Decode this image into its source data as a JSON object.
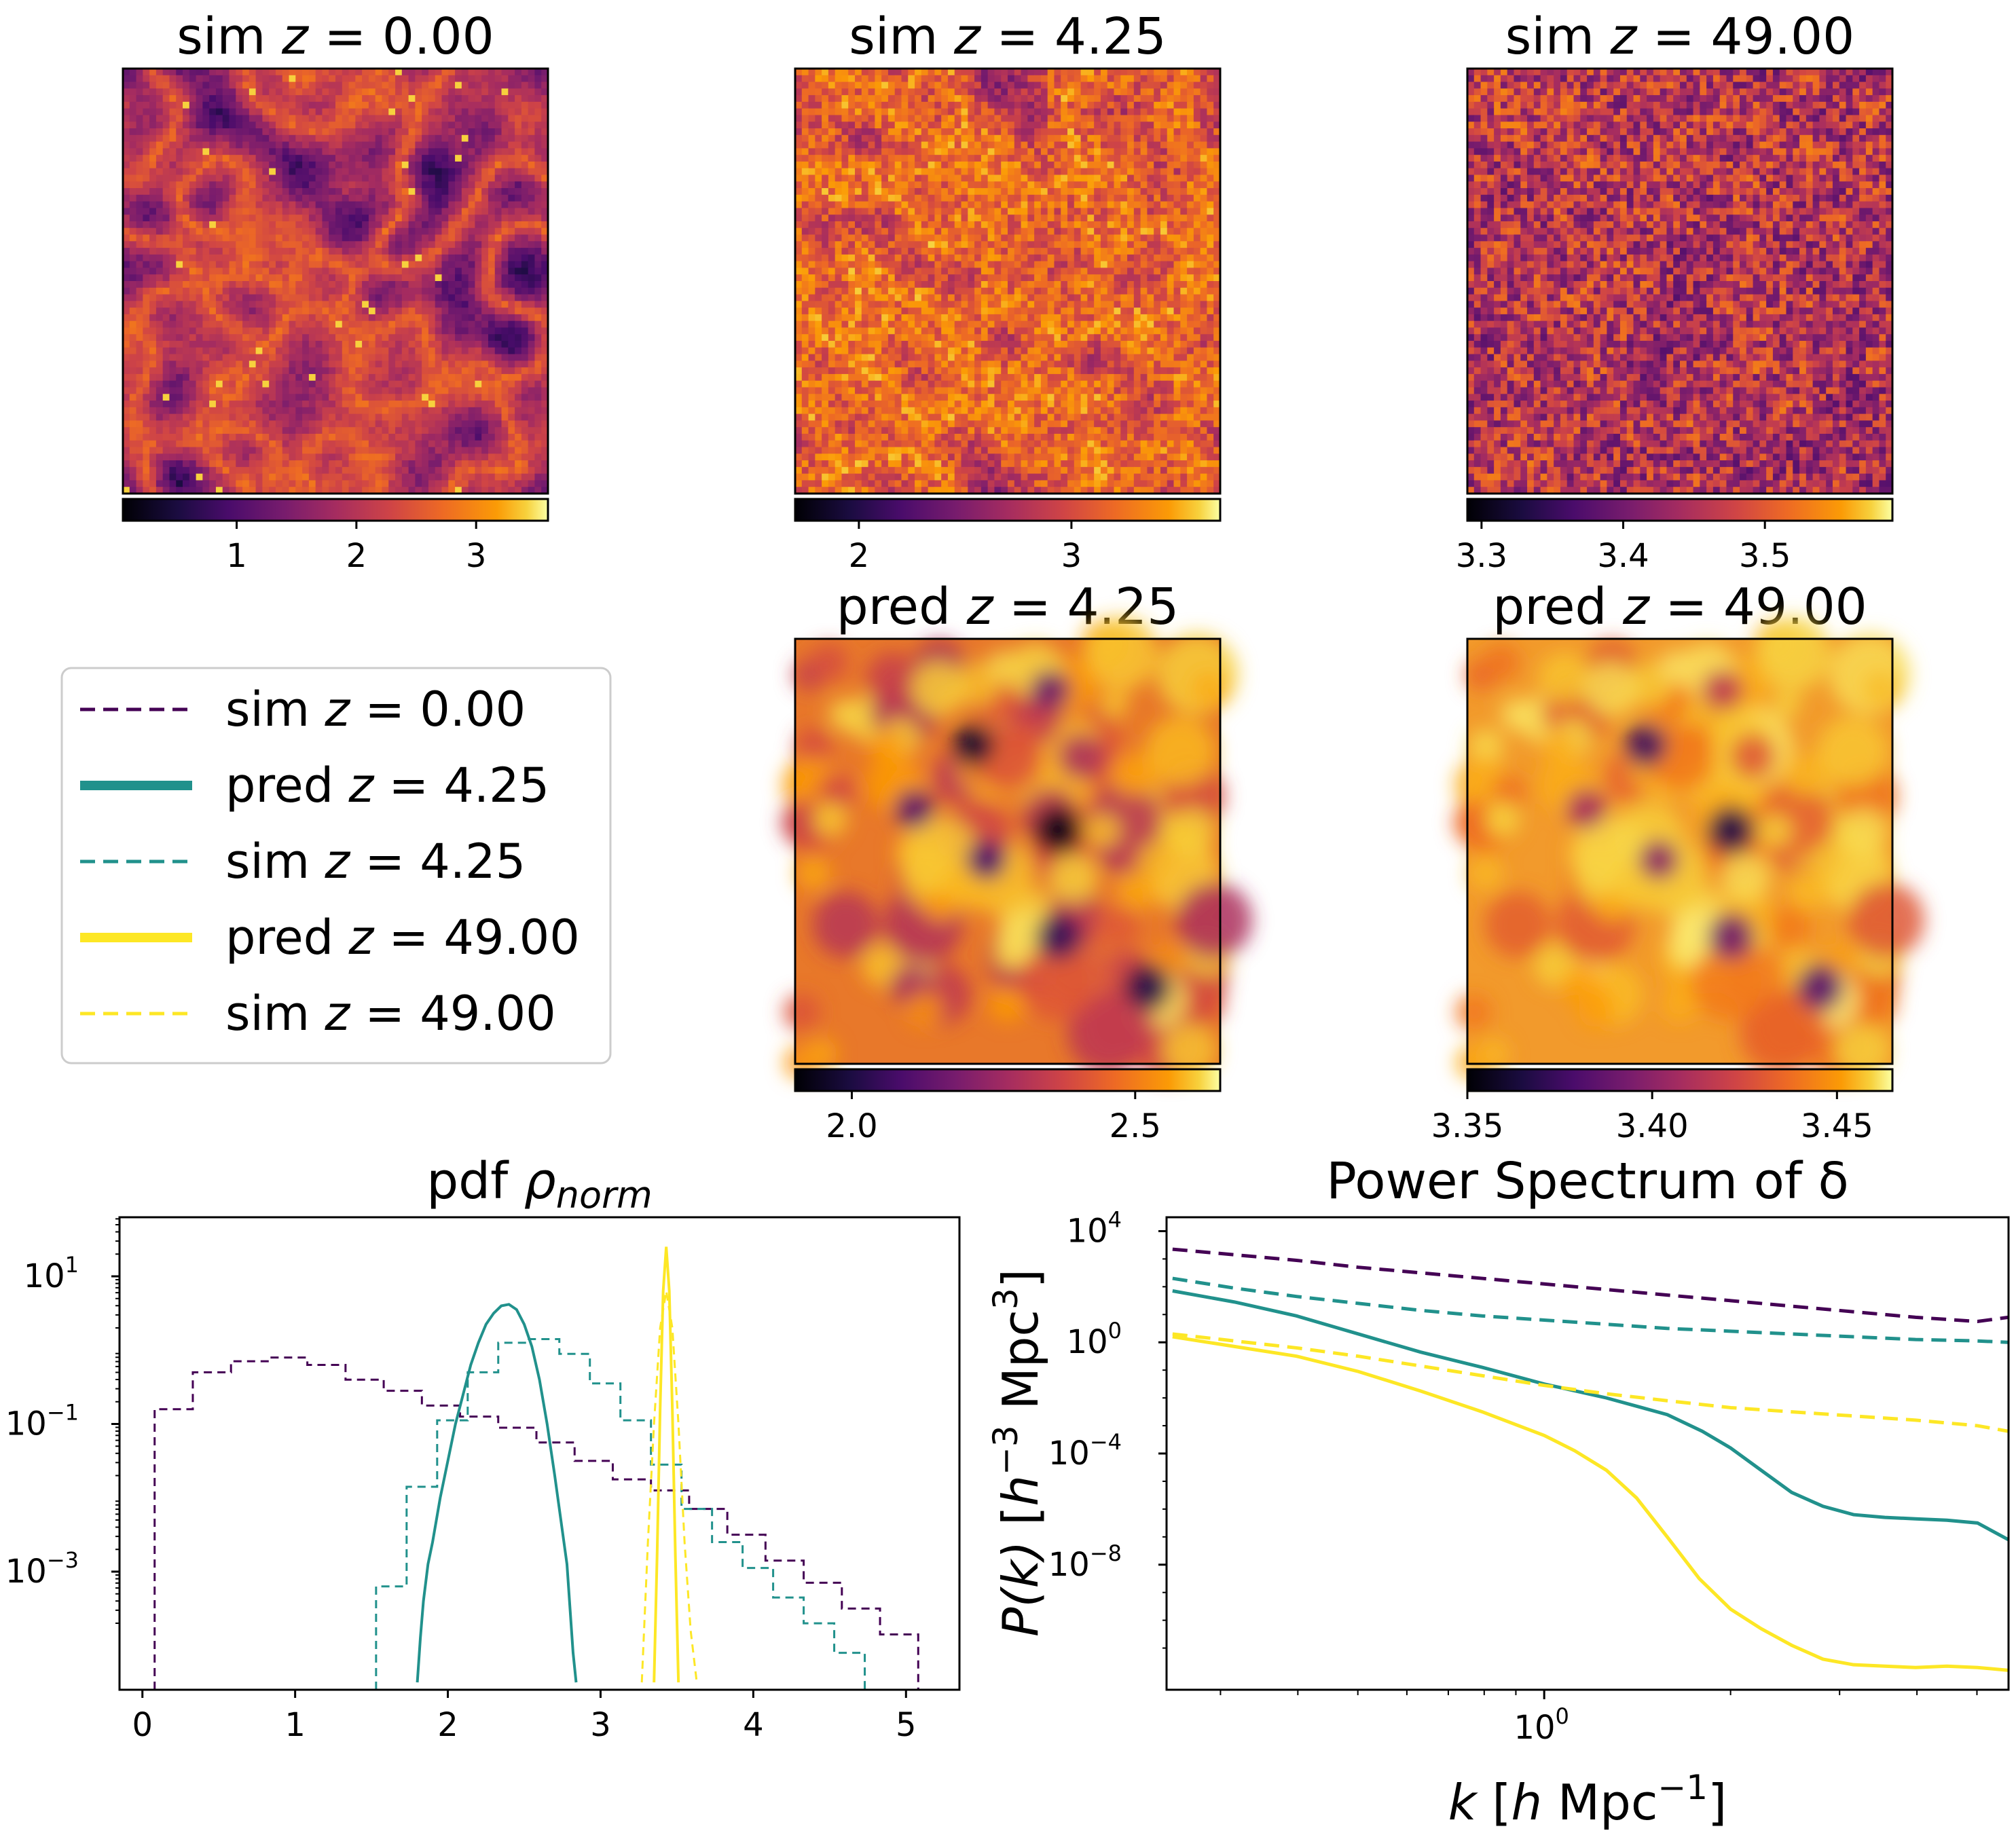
{
  "figure": {
    "panels": [
      {
        "id": "sim0",
        "title_pre": "sim ",
        "title_z": "z",
        "title_val": "= 0.00",
        "cb_ticks": [
          "1",
          "2",
          "3"
        ],
        "cb_vals": [
          1,
          2,
          3
        ],
        "vmin": 0.05,
        "vmax": 3.6,
        "style": "sim0"
      },
      {
        "id": "sim4",
        "title_pre": "sim ",
        "title_z": "z",
        "title_val": "= 4.25",
        "cb_ticks": [
          "2",
          "3"
        ],
        "cb_vals": [
          2,
          3
        ],
        "vmin": 1.7,
        "vmax": 3.7,
        "style": "sim4"
      },
      {
        "id": "sim49",
        "title_pre": "sim ",
        "title_z": "z",
        "title_val": "= 49.00",
        "cb_ticks": [
          "3.3",
          "3.4",
          "3.5"
        ],
        "cb_vals": [
          3.3,
          3.4,
          3.5
        ],
        "vmin": 3.29,
        "vmax": 3.59,
        "style": "sim49"
      },
      {
        "id": "pred4",
        "title_pre": "pred ",
        "title_z": "z",
        "title_val": "= 4.25",
        "cb_ticks": [
          "2.0",
          "2.5"
        ],
        "cb_vals": [
          2.0,
          2.5
        ],
        "vmin": 1.9,
        "vmax": 2.65,
        "style": "pred4"
      },
      {
        "id": "pred49",
        "title_pre": "pred ",
        "title_z": "z",
        "title_val": "= 49.00",
        "cb_ticks": [
          "3.35",
          "3.40",
          "3.45"
        ],
        "cb_vals": [
          3.35,
          3.4,
          3.45
        ],
        "vmin": 3.35,
        "vmax": 3.465,
        "style": "pred49"
      }
    ],
    "colors": {
      "sim0": "#440154",
      "z425": "#21918c",
      "z49": "#fde725",
      "frame": "#000000",
      "legend_border": "#cccccc"
    },
    "legend": [
      {
        "pre": "sim ",
        "z": "z",
        "val": "= 0.00",
        "color": "#440154",
        "dash": true,
        "thick": false
      },
      {
        "pre": "pred ",
        "z": "z",
        "val": "= 4.25",
        "color": "#21918c",
        "dash": false,
        "thick": true
      },
      {
        "pre": "sim ",
        "z": "z",
        "val": "= 4.25",
        "color": "#21918c",
        "dash": true,
        "thick": false
      },
      {
        "pre": "pred ",
        "z": "z",
        "val": "= 49.00",
        "color": "#fde725",
        "dash": false,
        "thick": true
      },
      {
        "pre": "sim ",
        "z": "z",
        "val": "= 49.00",
        "color": "#fde725",
        "dash": true,
        "thick": false
      }
    ]
  },
  "chart_data": [
    {
      "type": "heatmap",
      "title": "sim z = 0.00",
      "colormap": "inferno",
      "colorbar_range": [
        0.05,
        3.6
      ],
      "colorbar_ticks": [
        1,
        2,
        3
      ]
    },
    {
      "type": "heatmap",
      "title": "sim z = 4.25",
      "colormap": "inferno",
      "colorbar_range": [
        1.7,
        3.7
      ],
      "colorbar_ticks": [
        2,
        3
      ]
    },
    {
      "type": "heatmap",
      "title": "sim z = 49.00",
      "colormap": "inferno",
      "colorbar_range": [
        3.29,
        3.59
      ],
      "colorbar_ticks": [
        3.3,
        3.4,
        3.5
      ]
    },
    {
      "type": "heatmap",
      "title": "pred z = 4.25",
      "colormap": "inferno",
      "colorbar_range": [
        1.9,
        2.65
      ],
      "colorbar_ticks": [
        2.0,
        2.5
      ]
    },
    {
      "type": "heatmap",
      "title": "pred z = 49.00",
      "colormap": "inferno",
      "colorbar_range": [
        3.35,
        3.465
      ],
      "colorbar_ticks": [
        3.35,
        3.4,
        3.45
      ]
    },
    {
      "type": "line",
      "title_pre": "pdf ",
      "title_sym": "ρ",
      "title_sub": "norm",
      "xlim": [
        -0.15,
        5.35
      ],
      "ylim_log10": [
        -4.6,
        1.8
      ],
      "yscale": "log",
      "x_ticks": [
        0,
        1,
        2,
        3,
        4,
        5
      ],
      "x_tick_labels": [
        "0",
        "1",
        "2",
        "3",
        "4",
        "5"
      ],
      "y_ticks_log10": [
        1,
        -1,
        -3
      ],
      "y_tick_labels": [
        {
          "base": "10",
          "exp": "1"
        },
        {
          "base": "10",
          "exp": "−1"
        },
        {
          "base": "10",
          "exp": "−3"
        }
      ],
      "series": [
        {
          "name": "sim z = 0.00",
          "color": "#440154",
          "dash": true,
          "step": true,
          "bins": [
            0.08,
            0.33,
            0.58,
            0.83,
            1.08,
            1.33,
            1.58,
            1.83,
            2.08,
            2.33,
            2.58,
            2.83,
            3.08,
            3.33,
            3.58,
            3.83,
            4.08,
            4.33,
            4.58,
            4.83,
            5.08
          ],
          "log10": [
            -0.8,
            -0.3,
            -0.15,
            -0.1,
            -0.2,
            -0.4,
            -0.55,
            -0.75,
            -0.9,
            -1.05,
            -1.25,
            -1.5,
            -1.75,
            -1.9,
            -2.15,
            -2.5,
            -2.85,
            -3.15,
            -3.5,
            -3.85
          ]
        },
        {
          "name": "sim z = 4.25",
          "color": "#21918c",
          "dash": true,
          "step": true,
          "bins": [
            1.53,
            1.73,
            1.93,
            2.13,
            2.33,
            2.53,
            2.73,
            2.93,
            3.13,
            3.33,
            3.53,
            3.73,
            3.93,
            4.13,
            4.33,
            4.53,
            4.73
          ],
          "log10": [
            -3.2,
            -1.85,
            -0.95,
            -0.3,
            0.1,
            0.15,
            -0.05,
            -0.45,
            -0.95,
            -1.55,
            -2.15,
            -2.6,
            -2.95,
            -3.35,
            -3.7,
            -4.1
          ]
        },
        {
          "name": "pred z = 4.25",
          "color": "#21918c",
          "dash": false,
          "step": false,
          "x": [
            1.8,
            1.82,
            1.84,
            1.87,
            1.9,
            1.95,
            2.0,
            2.05,
            2.1,
            2.15,
            2.2,
            2.25,
            2.3,
            2.35,
            2.4,
            2.45,
            2.5,
            2.55,
            2.6,
            2.65,
            2.7,
            2.74,
            2.78,
            2.8,
            2.82,
            2.84
          ],
          "log10": [
            -4.5,
            -3.9,
            -3.4,
            -2.9,
            -2.6,
            -2.0,
            -1.5,
            -1.0,
            -0.6,
            -0.2,
            0.1,
            0.35,
            0.5,
            0.6,
            0.62,
            0.55,
            0.35,
            0.05,
            -0.4,
            -1.0,
            -1.7,
            -2.3,
            -2.9,
            -3.5,
            -4.1,
            -4.5
          ]
        },
        {
          "name": "pred z = 49.00",
          "color": "#fde725",
          "dash": false,
          "step": false,
          "x": [
            3.35,
            3.37,
            3.39,
            3.41,
            3.43,
            3.45,
            3.47,
            3.49,
            3.51
          ],
          "log10": [
            -4.5,
            -2.8,
            -0.8,
            0.8,
            1.4,
            0.8,
            -0.8,
            -2.8,
            -4.5
          ]
        },
        {
          "name": "sim z = 49.00",
          "color": "#fde725",
          "dash": true,
          "step": false,
          "x": [
            3.27,
            3.31,
            3.35,
            3.39,
            3.43,
            3.47,
            3.51,
            3.55,
            3.59,
            3.63
          ],
          "log10": [
            -4.5,
            -2.6,
            -1.0,
            0.3,
            0.8,
            0.3,
            -1.0,
            -2.6,
            -3.8,
            -4.5
          ]
        }
      ]
    },
    {
      "type": "line",
      "title": "Power Spectrum of δ",
      "xscale": "log",
      "yscale": "log",
      "xlim_log10": [
        -0.61,
        0.75
      ],
      "ylim_log10": [
        -12.5,
        4.5
      ],
      "xlabel_sym": "k",
      "xlabel_unit": "[h Mpc",
      "xlabel_exp": "−1",
      "xlabel_close": "]",
      "ylabel_sym": "P(k)",
      "ylabel_unit": "[h",
      "ylabel_exp1": "−3",
      "ylabel_mid": " Mpc",
      "ylabel_exp2": "3",
      "ylabel_close": "]",
      "x_tick_labels": [
        {
          "base": "10",
          "exp": "0"
        }
      ],
      "y_ticks_log10": [
        4,
        0,
        -4,
        -8
      ],
      "y_tick_labels": [
        {
          "base": "10",
          "exp": "4"
        },
        {
          "base": "10",
          "exp": "0"
        },
        {
          "base": "10",
          "exp": "−4"
        },
        {
          "base": "10",
          "exp": "−8"
        }
      ],
      "series": [
        {
          "name": "sim z = 0.00",
          "color": "#440154",
          "dash": true,
          "k": [
            0.251,
            0.316,
            0.398,
            0.501,
            0.631,
            0.794,
            1.0,
            1.26,
            1.58,
            2.0,
            2.51,
            3.16,
            3.98,
            5.01,
            5.62
          ],
          "log10P": [
            3.35,
            3.15,
            2.95,
            2.7,
            2.5,
            2.3,
            2.1,
            1.9,
            1.7,
            1.5,
            1.3,
            1.1,
            0.9,
            0.75,
            0.9
          ]
        },
        {
          "name": "sim z = 4.25",
          "color": "#21918c",
          "dash": true,
          "k": [
            0.251,
            0.316,
            0.398,
            0.501,
            0.631,
            0.794,
            1.0,
            1.26,
            1.58,
            2.0,
            2.51,
            3.16,
            3.98,
            5.01,
            5.62
          ],
          "log10P": [
            2.3,
            1.95,
            1.65,
            1.4,
            1.15,
            0.95,
            0.8,
            0.65,
            0.5,
            0.4,
            0.3,
            0.2,
            0.1,
            0.05,
            0.0
          ]
        },
        {
          "name": "pred z = 4.25",
          "color": "#21918c",
          "dash": false,
          "k": [
            0.251,
            0.316,
            0.398,
            0.501,
            0.631,
            0.794,
            1.0,
            1.26,
            1.58,
            1.8,
            2.0,
            2.24,
            2.51,
            2.82,
            3.16,
            3.55,
            3.98,
            4.47,
            5.01,
            5.62
          ],
          "log10P": [
            1.85,
            1.45,
            0.95,
            0.3,
            -0.35,
            -0.9,
            -1.5,
            -2.0,
            -2.6,
            -3.2,
            -3.8,
            -4.6,
            -5.4,
            -5.9,
            -6.2,
            -6.3,
            -6.35,
            -6.4,
            -6.5,
            -7.1
          ]
        },
        {
          "name": "sim z = 49.00",
          "color": "#fde725",
          "dash": true,
          "k": [
            0.251,
            0.316,
            0.398,
            0.501,
            0.631,
            0.794,
            1.0,
            1.26,
            1.58,
            2.0,
            2.51,
            3.16,
            3.98,
            5.01,
            5.62
          ],
          "log10P": [
            0.3,
            0.05,
            -0.2,
            -0.5,
            -0.85,
            -1.2,
            -1.55,
            -1.85,
            -2.1,
            -2.35,
            -2.5,
            -2.65,
            -2.8,
            -3.0,
            -3.2
          ]
        },
        {
          "name": "pred z = 49.00",
          "color": "#fde725",
          "dash": false,
          "k": [
            0.251,
            0.316,
            0.398,
            0.501,
            0.631,
            0.794,
            1.0,
            1.12,
            1.26,
            1.41,
            1.58,
            1.78,
            2.0,
            2.24,
            2.51,
            2.82,
            3.16,
            3.55,
            3.98,
            4.47,
            5.01,
            5.62
          ],
          "log10P": [
            0.2,
            -0.15,
            -0.5,
            -1.05,
            -1.75,
            -2.5,
            -3.35,
            -3.9,
            -4.6,
            -5.6,
            -7.0,
            -8.5,
            -9.6,
            -10.3,
            -10.9,
            -11.4,
            -11.6,
            -11.65,
            -11.7,
            -11.65,
            -11.7,
            -11.8
          ]
        }
      ]
    }
  ]
}
